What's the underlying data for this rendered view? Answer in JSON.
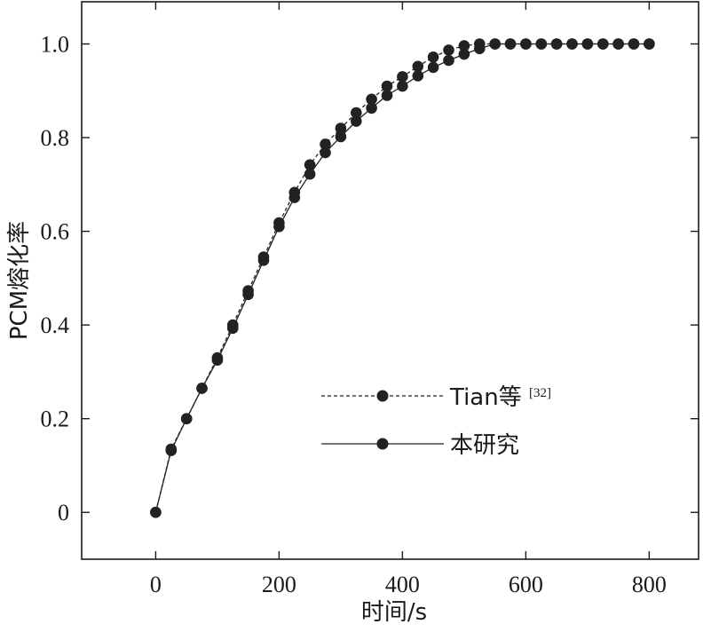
{
  "chart_data": {
    "type": "line",
    "xlabel": "时间/s",
    "ylabel": "PCM熔化率",
    "xlim": [
      -120,
      880
    ],
    "ylim": [
      -0.1,
      1.09
    ],
    "xticks": [
      0,
      200,
      400,
      600,
      800
    ],
    "xtick_labels": [
      "0",
      "200",
      "400",
      "600",
      "800"
    ],
    "yticks": [
      0,
      0.2,
      0.4,
      0.6,
      0.8,
      1.0
    ],
    "ytick_labels": [
      "0",
      "0.2",
      "0.4",
      "0.6",
      "0.8",
      "1.0"
    ],
    "grid": false,
    "legend_position": "center-right",
    "series": [
      {
        "name": "Tian等",
        "name_superscript": "[32]",
        "line_style": "dashed",
        "marker": "circle",
        "color": "#222222",
        "x": [
          0,
          25,
          50,
          75,
          100,
          125,
          150,
          175,
          200,
          225,
          250,
          275,
          300,
          325,
          350,
          375,
          400,
          425,
          450,
          475,
          500,
          525,
          550,
          575,
          600,
          625,
          650,
          675,
          700,
          725,
          750,
          775,
          800
        ],
        "y": [
          0,
          0.135,
          0.2,
          0.265,
          0.33,
          0.4,
          0.473,
          0.545,
          0.618,
          0.683,
          0.742,
          0.786,
          0.82,
          0.853,
          0.882,
          0.91,
          0.93,
          0.952,
          0.972,
          0.987,
          0.996,
          1.0,
          1.0,
          1.0,
          1.0,
          1.0,
          1.0,
          1.0,
          1.0,
          1.0,
          1.0,
          1.0,
          1.0
        ]
      },
      {
        "name": "本研究",
        "line_style": "solid",
        "marker": "circle",
        "color": "#222222",
        "x": [
          0,
          25,
          50,
          75,
          100,
          125,
          150,
          175,
          200,
          225,
          250,
          275,
          300,
          325,
          350,
          375,
          400,
          425,
          450,
          475,
          500,
          525,
          550,
          575,
          600,
          625,
          650,
          675,
          700,
          725,
          750,
          775,
          800
        ],
        "y": [
          0,
          0.132,
          0.2,
          0.265,
          0.325,
          0.393,
          0.465,
          0.538,
          0.61,
          0.672,
          0.722,
          0.768,
          0.802,
          0.835,
          0.863,
          0.89,
          0.91,
          0.932,
          0.95,
          0.965,
          0.978,
          0.99,
          1.0,
          1.0,
          1.0,
          1.0,
          1.0,
          1.0,
          1.0,
          1.0,
          1.0,
          1.0,
          1.0
        ]
      }
    ]
  }
}
